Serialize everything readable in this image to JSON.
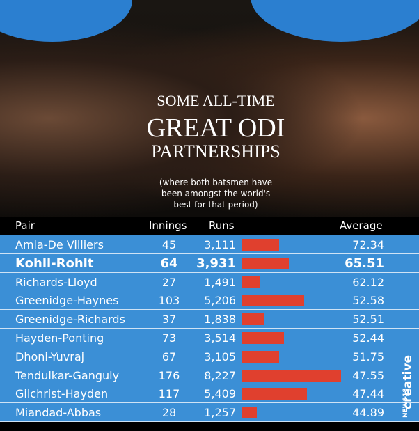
{
  "chart_data": {
    "type": "bar",
    "title": [
      "SOME ALL-TIME",
      "GREAT ODI",
      "PARTNERSHIPS"
    ],
    "subtitle": "(where both batsmen have been amongst the world's best for that period)",
    "headers": [
      "Pair",
      "Innings",
      "Runs",
      "Average"
    ],
    "categories": [
      "Amla-De Villiers",
      "Kohli-Rohit",
      "Richards-Lloyd",
      "Greenidge-Haynes",
      "Greenidge-Richards",
      "Hayden-Ponting",
      "Dhoni-Yuvraj",
      "Tendulkar-Ganguly",
      "Gilchrist-Hayden",
      "Miandad-Abbas"
    ],
    "innings": [
      45,
      64,
      27,
      103,
      37,
      73,
      67,
      176,
      117,
      28
    ],
    "values": [
      3111,
      3931,
      1491,
      5206,
      1838,
      3514,
      3105,
      8227,
      5409,
      1257
    ],
    "value_labels": [
      "3,111",
      "3,931",
      "1,491",
      "5,206",
      "1,838",
      "3,514",
      "3,105",
      "8,227",
      "5,409",
      "1,257"
    ],
    "average": [
      72.34,
      65.51,
      62.12,
      52.58,
      52.51,
      52.44,
      51.75,
      47.55,
      47.44,
      44.89
    ],
    "highlight": 1,
    "color": "#e0402e",
    "brand": [
      "NEWS18",
      "creative"
    ]
  }
}
